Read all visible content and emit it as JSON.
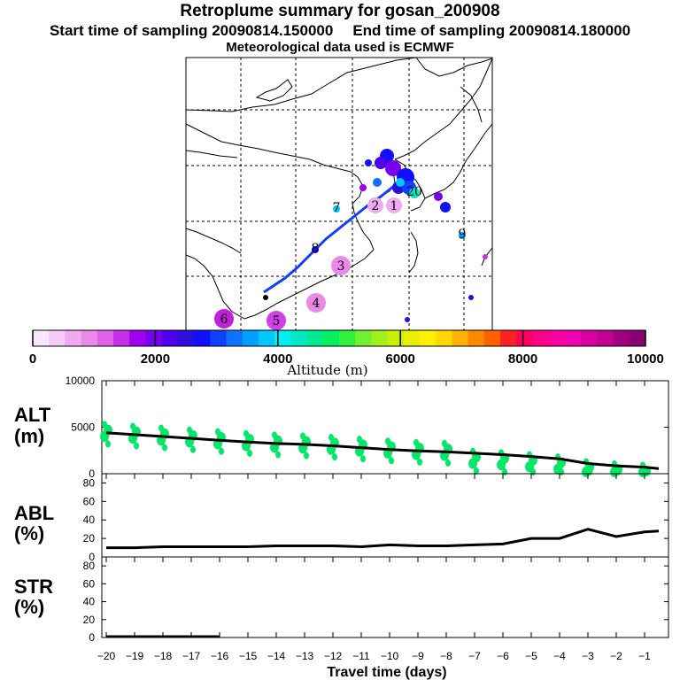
{
  "header": {
    "title": "Retroplume summary for gosan_200908",
    "start_label": "Start time of sampling 20090814.150000",
    "end_label": "End time of sampling 20090814.180000",
    "met_label": "Meteorological data used is ECMWF"
  },
  "colorbar": {
    "title": "Altitude (m)",
    "ticks": [
      "0",
      "2000",
      "4000",
      "6000",
      "8000",
      "10000"
    ],
    "range": [
      0,
      10000
    ],
    "colors": [
      "#fbe7fb",
      "#f6ccf6",
      "#f0aaf0",
      "#e98ae9",
      "#e060e8",
      "#c830e8",
      "#a000f0",
      "#7800f0",
      "#5000e8",
      "#2a10d8",
      "#1010ff",
      "#1040ff",
      "#1070ff",
      "#00a0ff",
      "#00c8ff",
      "#00f0f0",
      "#00e8c0",
      "#00e890",
      "#00f060",
      "#30f040",
      "#70f030",
      "#a0f020",
      "#c8f000",
      "#e8f000",
      "#fff000",
      "#ffd800",
      "#ffb000",
      "#ff8800",
      "#ff6000",
      "#ff2020",
      "#ff0060",
      "#ff0088",
      "#ff00a0",
      "#f000b0",
      "#d800a0",
      "#c00090",
      "#a00080",
      "#880070"
    ]
  },
  "map": {
    "bubbles": [
      {
        "label": "1",
        "color": "#f0aaf0"
      },
      {
        "label": "2",
        "color": "#f0aaf0"
      },
      {
        "label": "3",
        "color": "#e98ae9"
      },
      {
        "label": "4",
        "color": "#e98ae9"
      },
      {
        "label": "5",
        "color": "#d040e8"
      },
      {
        "label": "6",
        "color": "#c020d8"
      },
      {
        "label": "7",
        "color": "#00c8ff"
      },
      {
        "label": "8",
        "color": "#1010ff"
      },
      {
        "label": "9",
        "color": "#00a0ff"
      },
      {
        "label": "20",
        "color": "#00e8c0"
      }
    ]
  },
  "chart_data": [
    {
      "type": "line",
      "panel": "ALT",
      "ylabel": "ALT\n(m)",
      "ylabel_line1": "ALT",
      "ylabel_line2": "(m)",
      "xlabel": "Travel time (days)",
      "x": [
        -20,
        -19,
        -18,
        -17,
        -16,
        -15,
        -14,
        -13,
        -12,
        -11,
        -10,
        -9,
        -8,
        -7,
        -6,
        -5,
        -4,
        -3,
        -2,
        -1,
        -0.5
      ],
      "values": [
        4400,
        4200,
        4000,
        3800,
        3600,
        3400,
        3250,
        3150,
        3000,
        2800,
        2600,
        2450,
        2350,
        2200,
        2050,
        1850,
        1600,
        1100,
        850,
        700,
        550
      ],
      "ylim": [
        0,
        10000
      ],
      "yticks": [
        "0",
        "5000",
        "10000"
      ],
      "scatter_color": "#00e868"
    },
    {
      "type": "line",
      "panel": "ABL",
      "ylabel_line1": "ABL",
      "ylabel_line2": "(%)",
      "x": [
        -20,
        -19,
        -18,
        -17,
        -16,
        -15,
        -14,
        -13,
        -12,
        -11,
        -10,
        -9,
        -8,
        -7,
        -6,
        -5,
        -4,
        -3,
        -2,
        -1,
        -0.5
      ],
      "values": [
        10,
        10,
        11,
        11,
        11,
        11,
        12,
        12,
        12,
        11,
        13,
        12,
        12,
        13,
        14,
        20,
        20,
        30,
        22,
        27,
        28
      ],
      "ylim": [
        0,
        90
      ],
      "yticks": [
        "0",
        "20",
        "40",
        "60",
        "80"
      ]
    },
    {
      "type": "line",
      "panel": "STR",
      "ylabel_line1": "STR",
      "ylabel_line2": "(%)",
      "x": [
        -20,
        -19,
        -18,
        -17,
        -16
      ],
      "values": [
        1,
        1,
        1,
        1,
        1
      ],
      "ylim": [
        0,
        90
      ],
      "yticks": [
        "0",
        "20",
        "40",
        "60",
        "80"
      ],
      "xticks": [
        "−20",
        "−19",
        "−18",
        "−17",
        "−16",
        "−15",
        "−14",
        "−13",
        "−12",
        "−11",
        "−10",
        "−9",
        "−8",
        "−7",
        "−6",
        "−5",
        "−4",
        "−3",
        "−2",
        "−1"
      ],
      "xlim": [
        -20,
        0
      ]
    }
  ]
}
